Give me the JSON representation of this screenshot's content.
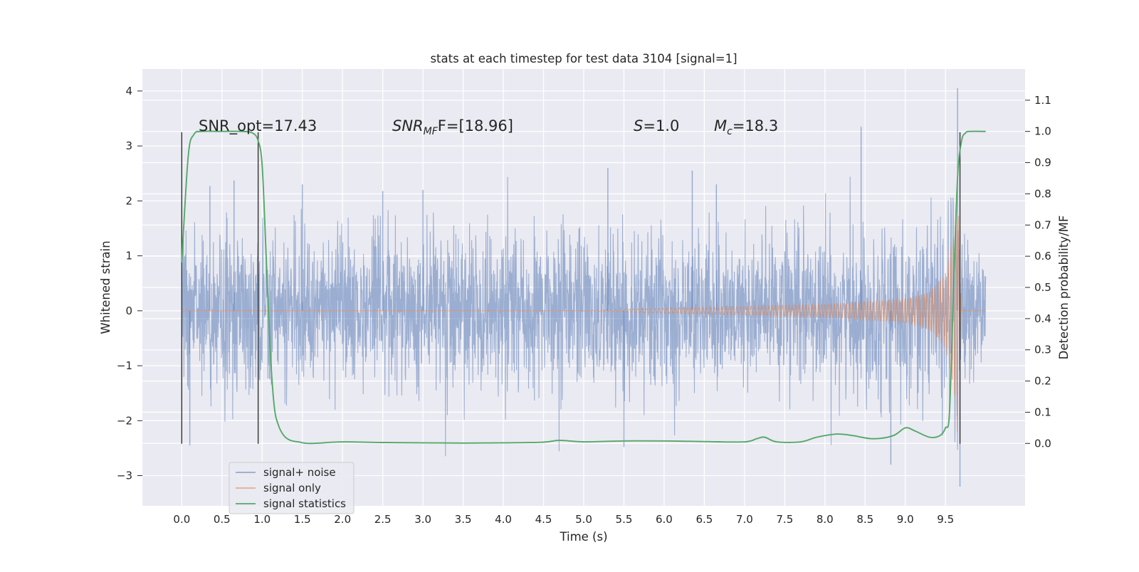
{
  "chart_data": {
    "type": "line",
    "title": "stats at each timestep for test data 3104 [signal=1]",
    "xlabel": "Time (s)",
    "ylabel": "Whitened strain",
    "ylabel_right": "Detection probability/MF",
    "xlim": [
      -0.49,
      10.49
    ],
    "ylim": [
      -3.55,
      4.4
    ],
    "ylim_right": [
      -0.2,
      1.2
    ],
    "xticks": [
      "0.0",
      "0.5",
      "1.0",
      "1.5",
      "2.0",
      "2.5",
      "3.0",
      "3.5",
      "4.0",
      "4.5",
      "5.0",
      "5.5",
      "6.0",
      "6.5",
      "7.0",
      "7.5",
      "8.0",
      "8.5",
      "9.0",
      "9.5"
    ],
    "yticks": [
      "−3",
      "−2",
      "−1",
      "0",
      "1",
      "2",
      "3",
      "4"
    ],
    "yticks_right": [
      "0.0",
      "0.1",
      "0.2",
      "0.3",
      "0.4",
      "0.5",
      "0.6",
      "0.7",
      "0.8",
      "0.9",
      "1.0",
      "1.1"
    ],
    "grid": true,
    "legend_position": "lower-left",
    "annotations": {
      "snr_opt": "SNR_opt=17.43",
      "snr_mf_base": "SNR",
      "snr_mf_sub": "MF",
      "snr_mf_rest": "F=[18.96]",
      "s_base": "S",
      "s_rest": "=1.0",
      "mc_base": "M",
      "mc_sub": "c",
      "mc_rest": "=18.3"
    },
    "series": [
      {
        "name": "signal+ noise",
        "axis": "left",
        "color": "#4c72b0",
        "x": [
          0.0,
          10.0
        ],
        "y": [
          0,
          0
        ],
        "envelope": {
          "x": [
            0.0,
            9.0,
            9.5,
            9.65,
            9.7,
            10.0
          ],
          "sd": [
            0.68,
            0.7,
            0.72,
            0.8,
            0.72,
            0.7
          ]
        },
        "peaks": {
          "x": [
            0.1,
            0.35,
            0.65,
            1.5,
            2.5,
            3.0,
            5.3,
            5.5,
            6.35,
            6.65,
            8.45,
            8.82,
            9.65,
            9.68
          ],
          "y": [
            -2.45,
            2.27,
            2.37,
            2.3,
            2.18,
            2.2,
            2.6,
            -2.48,
            2.55,
            2.3,
            3.35,
            -2.8,
            4.05,
            -3.2
          ]
        }
      },
      {
        "name": "signal only",
        "axis": "left",
        "color": "#dd8452",
        "x": [
          0.0,
          5.0,
          6.0,
          7.0,
          8.0,
          9.0,
          9.3,
          9.5,
          9.6,
          9.65,
          9.7,
          10.0
        ],
        "y": [
          0.0,
          0.0,
          0.05,
          0.08,
          0.12,
          0.22,
          0.35,
          0.7,
          1.4,
          2.3,
          0.0,
          0.0
        ]
      },
      {
        "name": "signal statistics",
        "axis": "right",
        "color": "#55a868",
        "x": [
          0.0,
          0.08,
          0.15,
          0.25,
          0.5,
          0.75,
          0.88,
          0.95,
          1.0,
          1.05,
          1.1,
          1.15,
          1.2,
          1.27,
          1.35,
          1.45,
          1.6,
          2.0,
          2.5,
          3.0,
          3.5,
          4.0,
          4.5,
          4.7,
          5.0,
          5.5,
          6.0,
          6.5,
          7.0,
          7.15,
          7.25,
          7.4,
          7.7,
          7.9,
          8.15,
          8.35,
          8.6,
          8.85,
          9.0,
          9.12,
          9.3,
          9.43,
          9.5,
          9.55,
          9.6,
          9.65,
          9.7,
          9.75,
          9.8,
          10.0
        ],
        "y": [
          0.58,
          0.92,
          0.99,
          1.0,
          1.0,
          1.0,
          0.995,
          0.97,
          0.89,
          0.6,
          0.3,
          0.12,
          0.06,
          0.025,
          0.01,
          0.005,
          0.0,
          0.005,
          0.003,
          0.002,
          0.001,
          0.002,
          0.004,
          0.01,
          0.005,
          0.008,
          0.008,
          0.006,
          0.005,
          0.015,
          0.02,
          0.005,
          0.005,
          0.02,
          0.03,
          0.025,
          0.015,
          0.025,
          0.05,
          0.04,
          0.02,
          0.025,
          0.05,
          0.1,
          0.5,
          0.85,
          0.97,
          0.995,
          1.0,
          1.0
        ]
      }
    ],
    "vlines": {
      "color": "#333333",
      "x": [
        0.0,
        0.95,
        9.68
      ],
      "ymin": -2.42,
      "ymax": 3.25
    }
  }
}
